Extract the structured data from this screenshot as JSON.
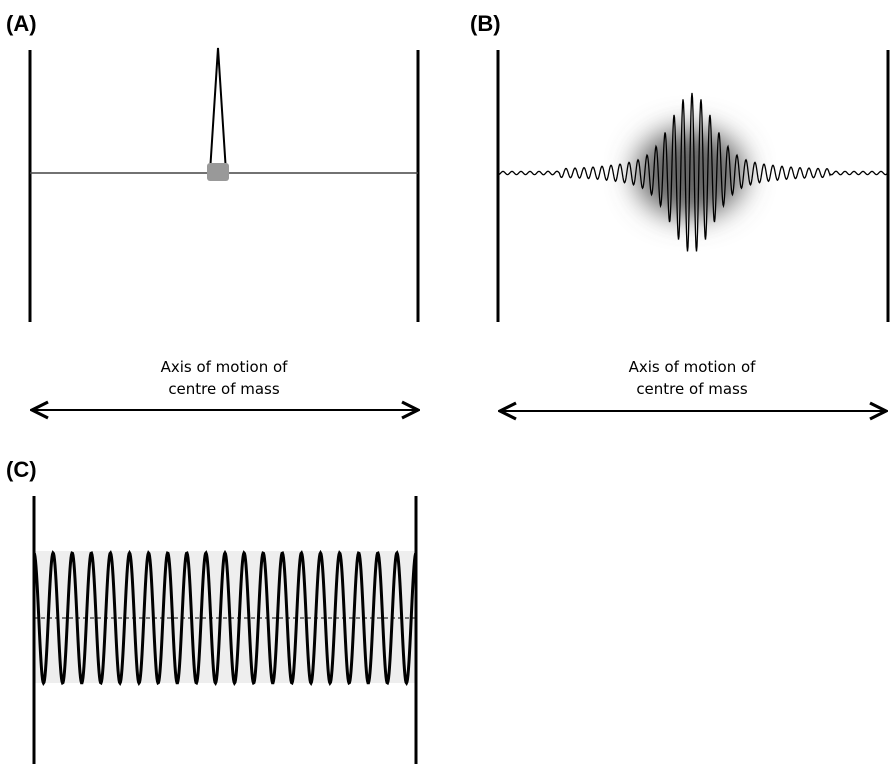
{
  "panels": [
    {
      "label": "(A)",
      "caption": [
        "Axis of motion of",
        "centre of mass"
      ]
    },
    {
      "label": "(B)",
      "caption": [
        "Axis of motion of",
        "centre of mass"
      ]
    },
    {
      "label": "(C)"
    }
  ]
}
